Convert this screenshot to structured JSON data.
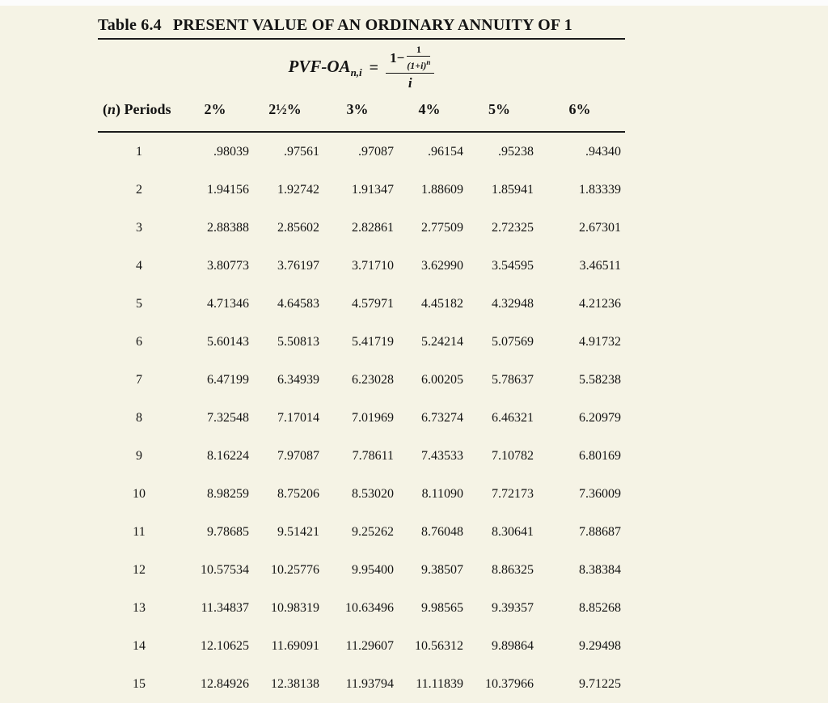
{
  "title": {
    "label": "Table 6.4",
    "heading": "PRESENT VALUE OF AN ORDINARY ANNUITY OF 1"
  },
  "formula": {
    "lhs_name": "PVF-OA",
    "lhs_subscript": "n,i",
    "equals": "=",
    "numerator_prefix": "1−",
    "inner_numerator": "1",
    "inner_denominator_base": "(1+i)",
    "inner_denominator_exponent": "n",
    "denominator": "i"
  },
  "table": {
    "period_header": {
      "open": "(",
      "symbol": "n",
      "close": ") Periods"
    },
    "rate_headers": [
      "2%",
      "2½%",
      "3%",
      "4%",
      "5%",
      "6%"
    ],
    "rows": [
      {
        "period": "1",
        "values": [
          ".98039",
          ".97561",
          ".97087",
          ".96154",
          ".95238",
          ".94340"
        ]
      },
      {
        "period": "2",
        "values": [
          "1.94156",
          "1.92742",
          "1.91347",
          "1.88609",
          "1.85941",
          "1.83339"
        ]
      },
      {
        "period": "3",
        "values": [
          "2.88388",
          "2.85602",
          "2.82861",
          "2.77509",
          "2.72325",
          "2.67301"
        ]
      },
      {
        "period": "4",
        "values": [
          "3.80773",
          "3.76197",
          "3.71710",
          "3.62990",
          "3.54595",
          "3.46511"
        ]
      },
      {
        "period": "5",
        "values": [
          "4.71346",
          "4.64583",
          "4.57971",
          "4.45182",
          "4.32948",
          "4.21236"
        ]
      },
      {
        "period": "6",
        "values": [
          "5.60143",
          "5.50813",
          "5.41719",
          "5.24214",
          "5.07569",
          "4.91732"
        ]
      },
      {
        "period": "7",
        "values": [
          "6.47199",
          "6.34939",
          "6.23028",
          "6.00205",
          "5.78637",
          "5.58238"
        ]
      },
      {
        "period": "8",
        "values": [
          "7.32548",
          "7.17014",
          "7.01969",
          "6.73274",
          "6.46321",
          "6.20979"
        ]
      },
      {
        "period": "9",
        "values": [
          "8.16224",
          "7.97087",
          "7.78611",
          "7.43533",
          "7.10782",
          "6.80169"
        ]
      },
      {
        "period": "10",
        "values": [
          "8.98259",
          "8.75206",
          "8.53020",
          "8.11090",
          "7.72173",
          "7.36009"
        ]
      },
      {
        "period": "11",
        "values": [
          "9.78685",
          "9.51421",
          "9.25262",
          "8.76048",
          "8.30641",
          "7.88687"
        ]
      },
      {
        "period": "12",
        "values": [
          "10.57534",
          "10.25776",
          "9.95400",
          "9.38507",
          "8.86325",
          "8.38384"
        ]
      },
      {
        "period": "13",
        "values": [
          "11.34837",
          "10.98319",
          "10.63496",
          "9.98565",
          "9.39357",
          "8.85268"
        ]
      },
      {
        "period": "14",
        "values": [
          "12.10625",
          "11.69091",
          "11.29607",
          "10.56312",
          "9.89864",
          "9.29498"
        ]
      },
      {
        "period": "15",
        "values": [
          "12.84926",
          "12.38138",
          "11.93794",
          "11.11839",
          "10.37966",
          "9.71225"
        ]
      }
    ]
  },
  "colors": {
    "background": "#f5f3e5",
    "top_strip": "#fcfcfc",
    "text": "#141414",
    "rule": "#1b1b1b"
  }
}
